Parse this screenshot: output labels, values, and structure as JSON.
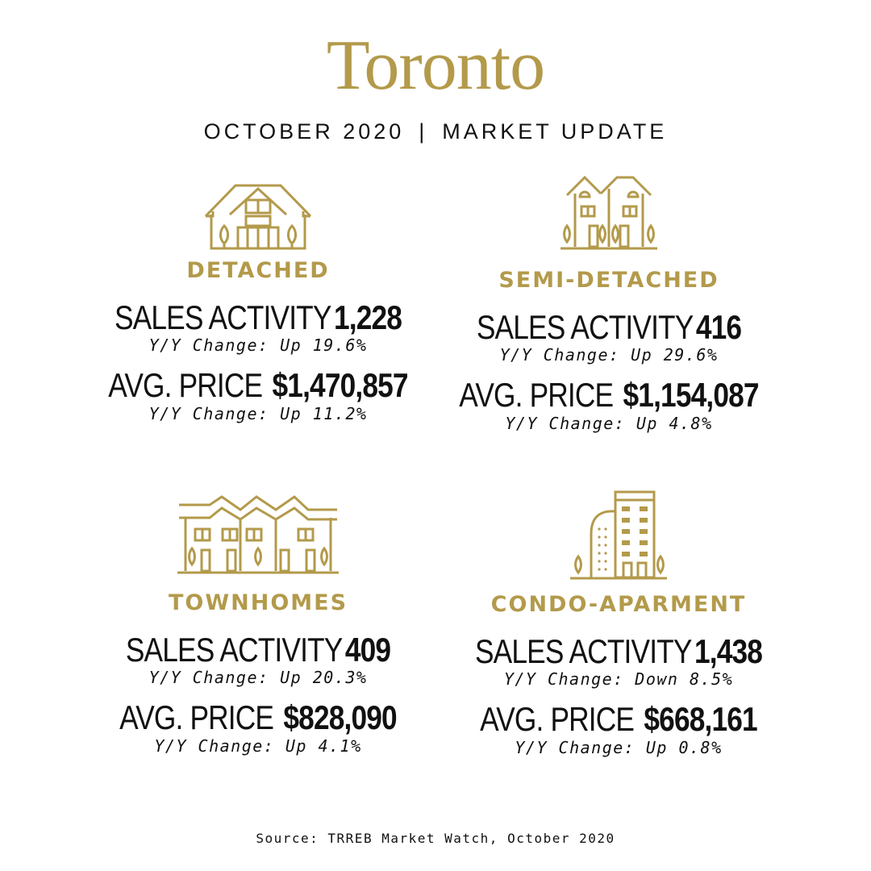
{
  "title": "Toronto",
  "subtitle": {
    "date": "OCTOBER 2020",
    "separator": "|",
    "label": "MARKET UPDATE"
  },
  "accent_color": "#b39a4b",
  "labels": {
    "sales_activity": "SALES ACTIVITY",
    "avg_price": "AVG. PRICE"
  },
  "categories": [
    {
      "name": "DETACHED",
      "icon": "detached-house-icon",
      "sales": "1,228",
      "sales_change": "Y/Y Change: Up 19.6%",
      "price": "$1,470,857",
      "price_change": "Y/Y Change: Up 11.2%"
    },
    {
      "name": "SEMI-DETACHED",
      "icon": "semi-detached-house-icon",
      "sales": "416",
      "sales_change": "Y/Y Change: Up 29.6%",
      "price": "$1,154,087",
      "price_change": "Y/Y Change: Up 4.8%"
    },
    {
      "name": "TOWNHOMES",
      "icon": "townhomes-icon",
      "sales": "409",
      "sales_change": "Y/Y Change: Up 20.3%",
      "price": "$828,090",
      "price_change": "Y/Y Change: Up 4.1%"
    },
    {
      "name": "CONDO-APARMENT",
      "icon": "condo-building-icon",
      "sales": "1,438",
      "sales_change": "Y/Y Change: Down 8.5%",
      "price": "$668,161",
      "price_change": "Y/Y Change: Up 0.8%"
    }
  ],
  "source": "Source: TRREB Market Watch, October 2020"
}
